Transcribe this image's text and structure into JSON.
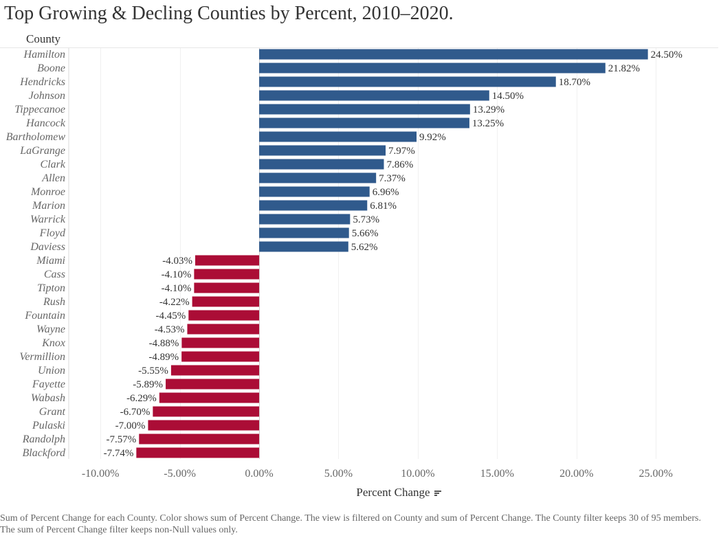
{
  "chart_data": {
    "type": "bar",
    "orientation": "horizontal",
    "title": "Top Growing & Decling Counties by Percent, 2010–2020.",
    "ylabel": "County",
    "xlabel": "Percent Change",
    "categories": [
      "Hamilton",
      "Boone",
      "Hendricks",
      "Johnson",
      "Tippecanoe",
      "Hancock",
      "Bartholomew",
      "LaGrange",
      "Clark",
      "Allen",
      "Monroe",
      "Marion",
      "Warrick",
      "Floyd",
      "Daviess",
      "Miami",
      "Cass",
      "Tipton",
      "Rush",
      "Fountain",
      "Wayne",
      "Knox",
      "Vermillion",
      "Union",
      "Fayette",
      "Wabash",
      "Grant",
      "Pulaski",
      "Randolph",
      "Blackford"
    ],
    "values": [
      24.5,
      21.82,
      18.7,
      14.5,
      13.29,
      13.25,
      9.92,
      7.97,
      7.86,
      7.37,
      6.96,
      6.81,
      5.73,
      5.66,
      5.62,
      -4.03,
      -4.1,
      -4.1,
      -4.22,
      -4.45,
      -4.53,
      -4.88,
      -4.89,
      -5.55,
      -5.89,
      -6.29,
      -6.7,
      -7.0,
      -7.57,
      -7.74
    ],
    "value_labels": [
      "24.50%",
      "21.82%",
      "18.70%",
      "14.50%",
      "13.29%",
      "13.25%",
      "9.92%",
      "7.97%",
      "7.86%",
      "7.37%",
      "6.96%",
      "6.81%",
      "5.73%",
      "5.66%",
      "5.62%",
      "-4.03%",
      "-4.10%",
      "-4.10%",
      "-4.22%",
      "-4.45%",
      "-4.53%",
      "-4.88%",
      "-4.89%",
      "-5.55%",
      "-5.89%",
      "-6.29%",
      "-6.70%",
      "-7.00%",
      "-7.57%",
      "-7.74%"
    ],
    "xticks": [
      -10,
      -5,
      0,
      5,
      10,
      15,
      20,
      25
    ],
    "xtick_labels": [
      "-10.00%",
      "-5.00%",
      "0.00%",
      "5.00%",
      "10.00%",
      "15.00%",
      "20.00%",
      "25.00%"
    ],
    "xlim": [
      -12,
      28.5
    ],
    "grid": true,
    "colors": {
      "positive": "#305a8c",
      "negative": "#ab0d36"
    }
  },
  "sort_icon": "sort-descending-icon",
  "caption": "Sum of Percent Change for each County.  Color shows sum of Percent Change. The view is filtered on County and sum of Percent Change. The County filter keeps 30 of 95 members. The sum of Percent Change filter keeps non-Null values only."
}
